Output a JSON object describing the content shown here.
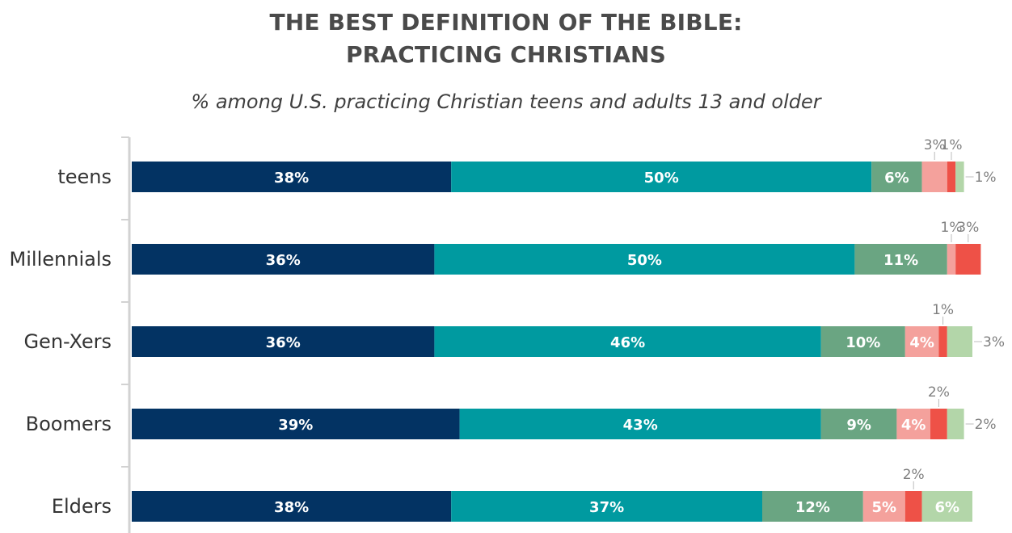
{
  "chart_data": {
    "type": "bar",
    "orientation": "horizontal",
    "stacked": true,
    "title_lines": [
      "THE BEST DEFINITION OF THE BIBLE:",
      "PRACTICING CHRISTIANS"
    ],
    "subtitle": "% among U.S. practicing Christian teens and adults 13 and older",
    "categories": [
      "teens",
      "Millennials",
      "Gen-Xers",
      "Boomers",
      "Elders"
    ],
    "xlim": [
      0,
      100
    ],
    "legend": "none",
    "grid": false,
    "series": [
      {
        "color": "#033363",
        "values": [
          38,
          36,
          36,
          39,
          38
        ]
      },
      {
        "color": "#009aa0",
        "values": [
          50,
          50,
          46,
          43,
          37
        ]
      },
      {
        "color": "#6aa582",
        "values": [
          6,
          11,
          10,
          9,
          12
        ]
      },
      {
        "color": "#f4a19c",
        "values": [
          3,
          1,
          4,
          4,
          5
        ]
      },
      {
        "color": "#ee5147",
        "values": [
          1,
          3,
          1,
          2,
          2
        ]
      },
      {
        "color": "#b3d6a9",
        "values": [
          1,
          0,
          3,
          2,
          6
        ]
      }
    ],
    "value_labels": [
      [
        "38%",
        "50%",
        "6%",
        "3%",
        "1%",
        "1%"
      ],
      [
        "36%",
        "50%",
        "11%",
        "1%",
        "3%",
        ""
      ],
      [
        "36%",
        "46%",
        "10%",
        "4%",
        "1%",
        "3%"
      ],
      [
        "39%",
        "43%",
        "9%",
        "4%",
        "2%",
        "2%"
      ],
      [
        "38%",
        "37%",
        "12%",
        "5%",
        "2%",
        "6%"
      ]
    ]
  }
}
